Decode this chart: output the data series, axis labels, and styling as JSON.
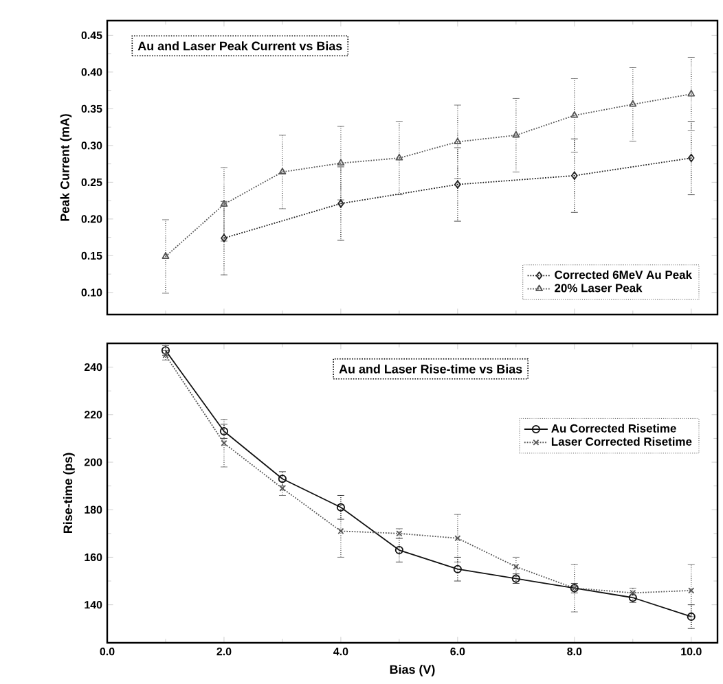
{
  "chart_data": [
    {
      "type": "line",
      "title": "Au and Laser Peak Current vs Bias",
      "ylabel": "Peak Current (mA)",
      "xlim": [
        0,
        10.45
      ],
      "xticks": [
        0,
        2,
        4,
        6,
        8,
        10
      ],
      "ylim": [
        0.07,
        0.47
      ],
      "yticks": [
        {
          "value": 0.1,
          "label": "0.10"
        },
        {
          "value": 0.15,
          "label": "0.15"
        },
        {
          "value": 0.2,
          "label": "0.20"
        },
        {
          "value": 0.25,
          "label": "0.25"
        },
        {
          "value": 0.3,
          "label": "0.30"
        },
        {
          "value": 0.35,
          "label": "0.35"
        },
        {
          "value": 0.4,
          "label": "0.40"
        },
        {
          "value": 0.45,
          "label": "0.45"
        }
      ],
      "tick_labels": "y",
      "legend": "bottom right",
      "grid": false,
      "series": [
        {
          "name": "Corrected 6MeV Au Peak",
          "color": "#222222",
          "marker": "diamond",
          "line_style": "dotted",
          "x": [
            2,
            4,
            6,
            8,
            10
          ],
          "values": [
            0.174,
            0.221,
            0.247,
            0.259,
            0.283
          ],
          "errors": [
            0.05,
            0.05,
            0.05,
            0.05,
            0.05
          ]
        },
        {
          "name": "20% Laser Peak",
          "color": "#555555",
          "marker": "triangle",
          "line_style": "dotted",
          "x": [
            1,
            2,
            3,
            4,
            5,
            6,
            7,
            8,
            9,
            10
          ],
          "values": [
            0.149,
            0.22,
            0.264,
            0.276,
            0.283,
            0.305,
            0.314,
            0.341,
            0.356,
            0.37
          ],
          "errors": [
            0.05,
            0.05,
            0.05,
            0.05,
            0.05,
            0.05,
            0.05,
            0.05,
            0.05,
            0.05
          ]
        }
      ]
    },
    {
      "type": "line",
      "title": "Au and Laser Rise-time vs Bias",
      "xlabel": "Bias (V)",
      "ylabel": "Rise-time (ps)",
      "xlim": [
        0,
        10.45
      ],
      "xticks": [
        {
          "value": 0,
          "label": "0.0"
        },
        {
          "value": 2,
          "label": "2.0"
        },
        {
          "value": 4,
          "label": "4.0"
        },
        {
          "value": 6,
          "label": "6.0"
        },
        {
          "value": 8,
          "label": "8.0"
        },
        {
          "value": 10,
          "label": "10.0"
        }
      ],
      "ylim": [
        124,
        250
      ],
      "yticks": [
        140,
        160,
        180,
        200,
        220,
        240
      ],
      "legend": "top right",
      "grid": false,
      "series": [
        {
          "name": "Au Corrected Risetime",
          "color": "#111111",
          "marker": "circle",
          "line_style": "solid",
          "x": [
            1,
            2,
            3,
            4,
            5,
            6,
            7,
            8,
            9,
            10
          ],
          "values": [
            247,
            213,
            193,
            181,
            163,
            155,
            151,
            147,
            143,
            135
          ],
          "errors": [
            2,
            3,
            3,
            5,
            5,
            5,
            2,
            2,
            2,
            5
          ]
        },
        {
          "name": "Laser Corrected Risetime",
          "color": "#555555",
          "marker": "cross",
          "line_style": "dotted",
          "x": [
            1,
            2,
            3,
            4,
            5,
            6,
            7,
            8,
            9,
            10
          ],
          "values": [
            245,
            208,
            189,
            171,
            170,
            168,
            156,
            147,
            145,
            146
          ],
          "errors": [
            2,
            10,
            3,
            11,
            2,
            10,
            4,
            10,
            2,
            11
          ]
        }
      ]
    }
  ]
}
